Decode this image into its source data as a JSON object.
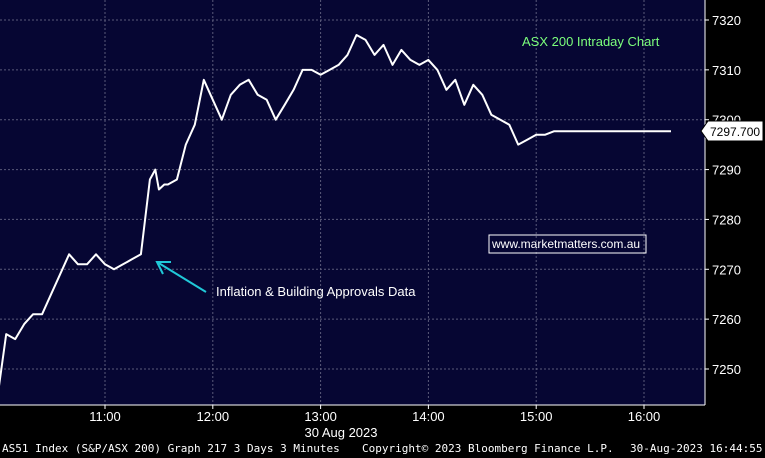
{
  "chart_data": {
    "type": "line",
    "title": "ASX 200 Intraday Chart",
    "watermark": "www.marketmatters.com.au",
    "annotation": "Inflation & Building Approvals Data",
    "date_label": "30 Aug 2023",
    "x_tick_labels": [
      "11:00",
      "12:00",
      "13:00",
      "14:00",
      "15:00",
      "16:00"
    ],
    "y_tick_labels": [
      "7250",
      "7260",
      "7270",
      "7280",
      "7290",
      "7300",
      "7310",
      "7320"
    ],
    "ylim": [
      7243,
      7322
    ],
    "last_value_label": "7297.700",
    "grid": true,
    "series": [
      {
        "x": [
          "10:00",
          "10:05",
          "10:10",
          "10:15",
          "10:20",
          "10:25",
          "10:30",
          "10:35",
          "10:40",
          "10:45",
          "10:50",
          "10:55",
          "11:00",
          "11:05",
          "11:10",
          "11:15",
          "11:20",
          "11:25",
          "11:28",
          "11:30",
          "11:33",
          "11:35",
          "11:40",
          "11:45",
          "11:50",
          "11:55",
          "12:00",
          "12:05",
          "12:10",
          "12:15",
          "12:20",
          "12:25",
          "12:30",
          "12:35",
          "12:40",
          "12:45",
          "12:50",
          "12:55",
          "13:00",
          "13:05",
          "13:10",
          "13:15",
          "13:20",
          "13:25",
          "13:30",
          "13:35",
          "13:40",
          "13:45",
          "13:50",
          "13:55",
          "14:00",
          "14:05",
          "14:10",
          "14:15",
          "14:20",
          "14:25",
          "14:30",
          "14:35",
          "14:40",
          "14:45",
          "14:50",
          "14:55",
          "15:00",
          "15:05",
          "15:10",
          "15:15",
          "15:20",
          "15:25",
          "15:30",
          "15:35",
          "15:40",
          "15:45",
          "15:50",
          "15:55",
          "16:00",
          "16:05",
          "16:10",
          "16:15"
        ],
        "values": [
          7244,
          7257,
          7256,
          7259,
          7261,
          7261,
          7265,
          7269,
          7273,
          7271,
          7271,
          7273,
          7271,
          7270,
          7271,
          7272,
          7273,
          7288,
          7290,
          7286,
          7287,
          7287,
          7288,
          7295,
          7299,
          7308,
          7304,
          7300,
          7305,
          7307,
          7308,
          7305,
          7304,
          7300,
          7303,
          7306,
          7310,
          7310,
          7309,
          7310,
          7311,
          7313,
          7317,
          7316,
          7313,
          7315,
          7311,
          7314,
          7312,
          7311,
          7312,
          7310,
          7306,
          7308,
          7303,
          7307,
          7305,
          7301,
          7300,
          7299,
          7295,
          7296,
          7297,
          7297,
          7297.7,
          7297.7,
          7297.7,
          7297.7,
          7297.7,
          7297.7,
          7297.7,
          7297.7,
          7297.7,
          7297.7,
          7297.7,
          7297.7,
          7297.7,
          7297.7
        ]
      }
    ]
  },
  "footer": {
    "left": "AS51 Index (S&P/ASX 200) Graph 217 3 Days 3 Minutes",
    "center": "Copyright© 2023 Bloomberg Finance L.P.",
    "right": "30-Aug-2023 16:44:55"
  },
  "colors": {
    "background": "#060633",
    "grid": "#5a5a7a",
    "line": "#ffffff",
    "title": "#7cff7c",
    "arrow": "#20c8d8"
  }
}
